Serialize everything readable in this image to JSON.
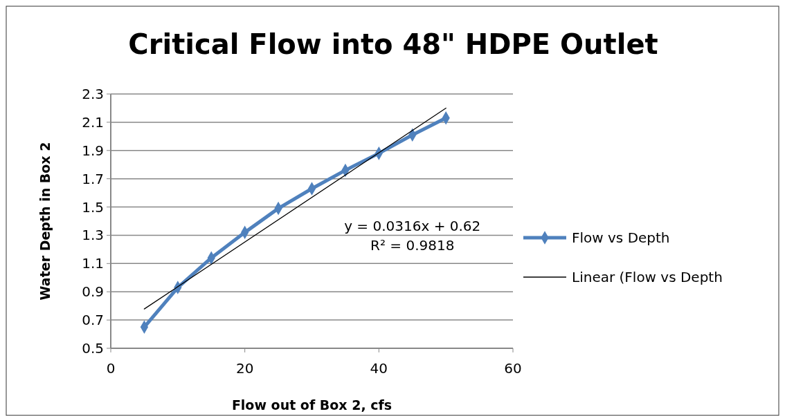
{
  "chart_data": {
    "type": "line",
    "title": "Critical Flow into 48\" HDPE Outlet",
    "xlabel": "Flow out of Box 2, cfs",
    "ylabel": "Water Depth in Box 2",
    "series": [
      {
        "name": "Flow vs Depth",
        "color": "#4f81bd",
        "x": [
          5,
          10,
          15,
          20,
          25,
          30,
          35,
          40,
          45,
          50
        ],
        "values": [
          0.65,
          0.93,
          1.14,
          1.32,
          1.49,
          1.63,
          1.76,
          1.88,
          2.01,
          2.13
        ],
        "marker": "diamond"
      },
      {
        "name": "Linear (Flow vs Depth",
        "color": "#000000",
        "x": [
          5,
          50
        ],
        "values": [
          0.778,
          2.2
        ],
        "marker": "none"
      }
    ],
    "annotations": [
      "y = 0.0316x + 0.62",
      "R² = 0.9818"
    ],
    "xlim": [
      0,
      60
    ],
    "xticks": [
      0,
      20,
      40,
      60
    ],
    "ylim": [
      0.5,
      2.3
    ],
    "yticks": [
      0.5,
      0.7,
      0.9,
      1.1,
      1.3,
      1.5,
      1.7,
      1.9,
      2.1,
      2.3
    ],
    "grid": "y",
    "legend": "right"
  }
}
